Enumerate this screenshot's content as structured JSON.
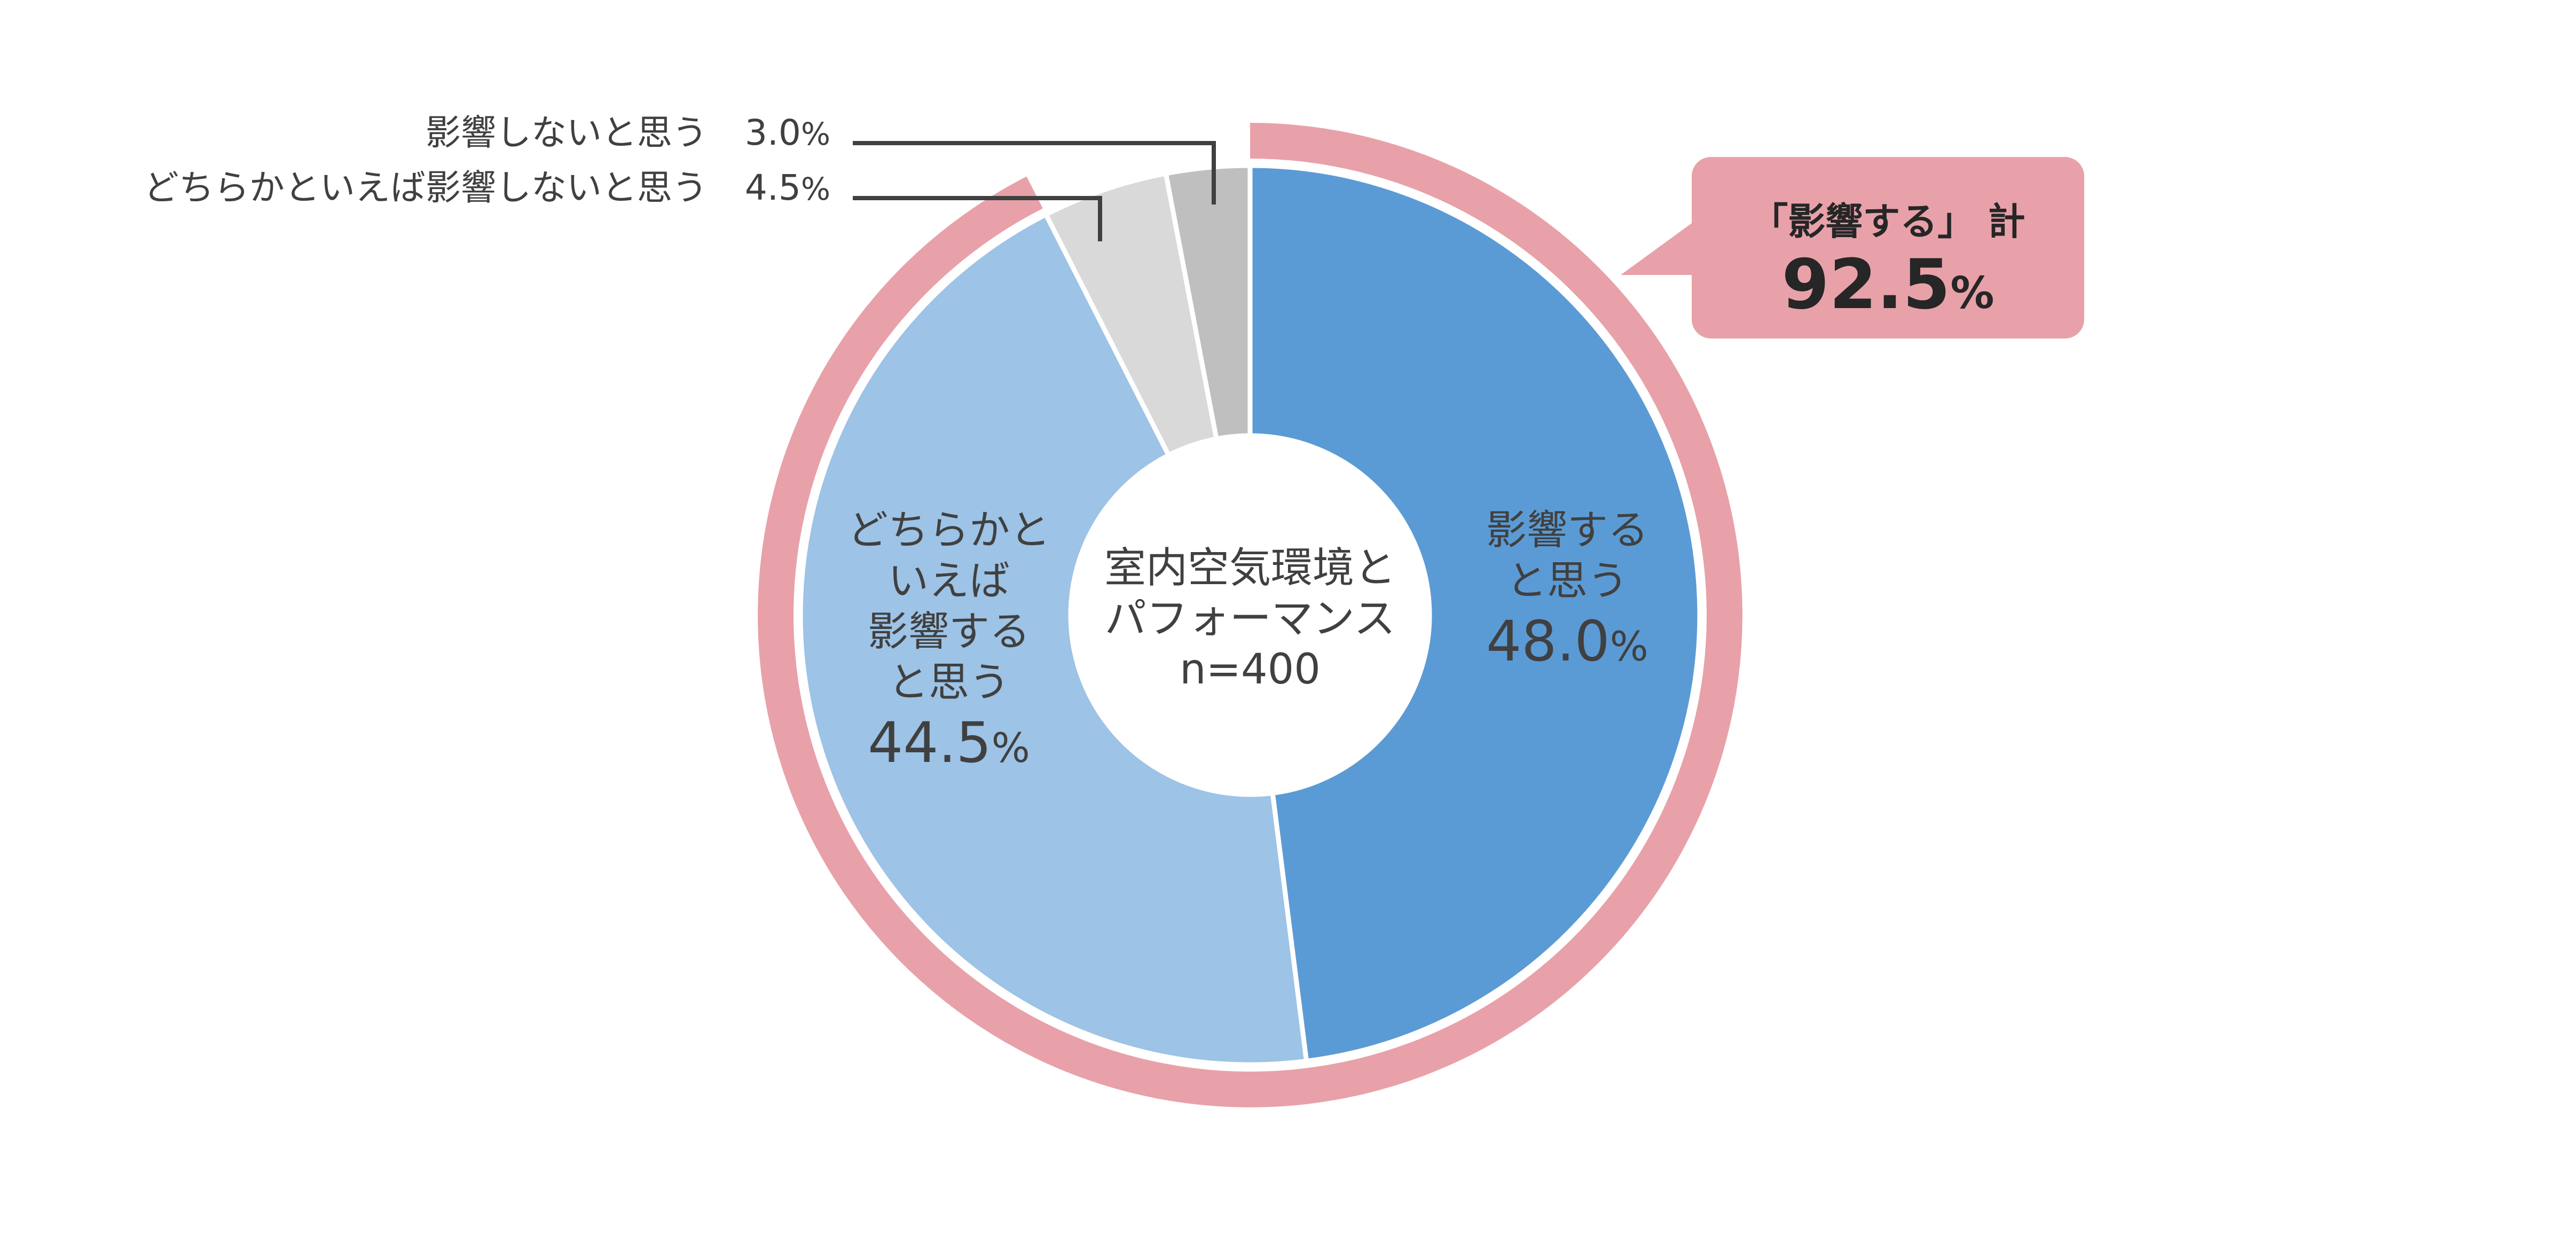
{
  "chart_data": {
    "type": "pie",
    "variant": "donut",
    "center_title": [
      "室内空気環境と",
      "パフォーマンス",
      "n=400"
    ],
    "sample_size": 400,
    "categories": [
      "影響すると思う",
      "どちらかといえば影響すると思う",
      "どちらかといえば影響しないと思う",
      "影響しないと思う"
    ],
    "values": [
      48.0,
      44.5,
      4.5,
      3.0
    ],
    "unit": "%",
    "colors": [
      "#5B9BD5",
      "#9DC3E6",
      "#D9D9D9",
      "#BFBFBF"
    ],
    "start_angle": "12 o'clock",
    "direction": "clockwise",
    "highlight_ring": {
      "label": "「影響する」計",
      "value": 92.5,
      "covers": [
        "影響すると思う",
        "どちらかといえば影響すると思う"
      ],
      "color": "#E8A1A9"
    }
  },
  "slices": [
    {
      "lines": [
        "影響する",
        "と思う"
      ],
      "value": "48.0",
      "sign": "%"
    },
    {
      "lines": [
        "どちらかと",
        "いえば",
        "影響する",
        "と思う"
      ],
      "value": "44.5",
      "sign": "%"
    }
  ],
  "legend": [
    {
      "label": "影響しないと思う",
      "value": "3.0",
      "sign": "%"
    },
    {
      "label": "どちらかといえば影響しないと思う",
      "value": "4.5",
      "sign": "%"
    }
  ],
  "center": {
    "line1": "室内空気環境と",
    "line2": "パフォーマンス",
    "line3": "n=400"
  },
  "callout": {
    "title": "「影響する」 計",
    "value": "92.5",
    "sign": "%"
  },
  "colors": {
    "strong_blue": "#5B9BD5",
    "light_blue": "#9DC3E6",
    "light_gray": "#D9D9D9",
    "gray": "#BFBFBF",
    "ring_pink": "#E8A1A9",
    "text": "#404040",
    "leader": "#404040"
  }
}
